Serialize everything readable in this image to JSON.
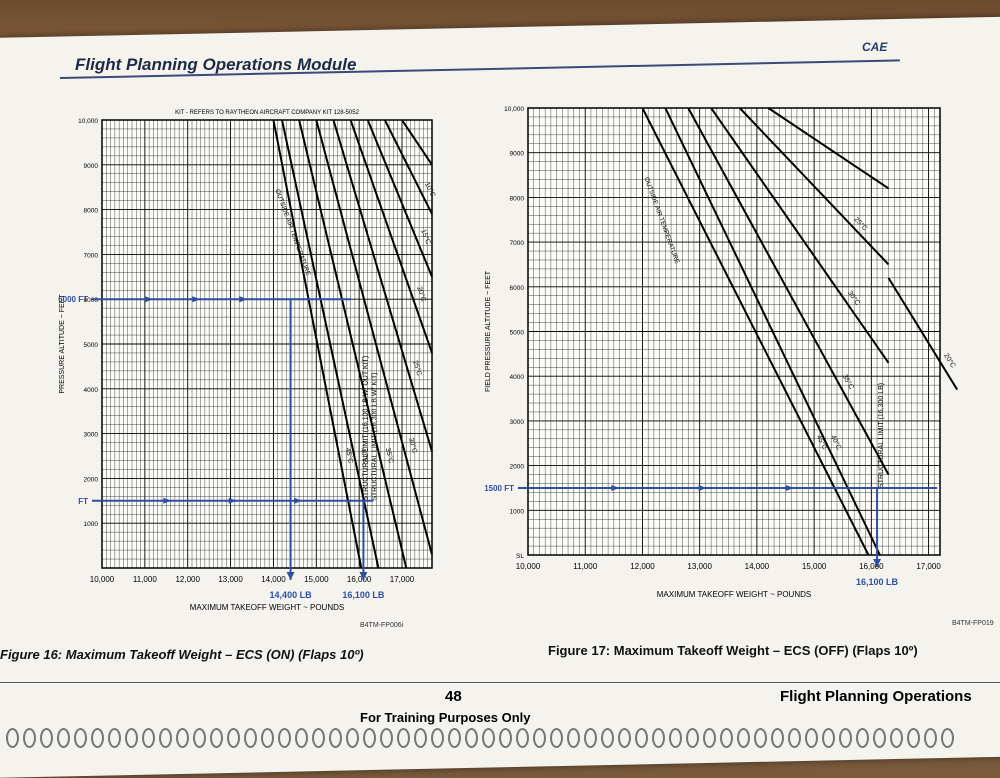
{
  "page": {
    "module_title": "Flight Planning Operations Module",
    "logo": "CAE",
    "page_number": "48",
    "training_note": "For Training Purposes Only",
    "section_title": "Flight Planning Operations"
  },
  "chart_data": [
    {
      "type": "line",
      "caption": "Figure 16:  Maximum Takeoff Weight – ECS (ON) (Flaps 10º)",
      "code": "B4TM-FP006i",
      "note": "KIT - REFERS TO RAYTHEON AIRCRAFT COMPANY KIT 128-5052",
      "xlabel": "MAXIMUM TAKEOFF WEIGHT ~ POUNDS",
      "ylabel": "PRESSURE ALTITUDE ~ FEET",
      "xlim": [
        10000,
        17700
      ],
      "ylim": [
        0,
        10000
      ],
      "x_ticks": [
        "10,000",
        "11,000",
        "12,000",
        "13,000",
        "14,000",
        "15,000",
        "16,000",
        "17,000"
      ],
      "y_ticks": [
        "",
        "1000",
        "2000",
        "3000",
        "4000",
        "5000",
        "6000",
        "7000",
        "8000",
        "9000",
        "10,000"
      ],
      "temp_label": "OUTSIDE AIR TEMPERATURE",
      "struct_labels": [
        "STRUCTURAL LIMIT (16,100 LB W/ OUT KIT)",
        "STRUCTURAL LIMIT (16,300 LB W/ KIT)"
      ],
      "temp_lines": [
        {
          "label": "45°C",
          "points": [
            [
              14000,
              10000
            ],
            [
              16050,
              0
            ]
          ]
        },
        {
          "label": "40°C",
          "points": [
            [
              14200,
              10000
            ],
            [
              16450,
              0
            ]
          ]
        },
        {
          "label": "35°C",
          "points": [
            [
              14600,
              10000
            ],
            [
              17100,
              0
            ]
          ]
        },
        {
          "label": "30°C",
          "points": [
            [
              15000,
              10000
            ],
            [
              17700,
              300
            ]
          ]
        },
        {
          "label": "25°C",
          "points": [
            [
              15400,
              10000
            ],
            [
              17700,
              2600
            ]
          ]
        },
        {
          "label": "20°C",
          "points": [
            [
              15800,
              10000
            ],
            [
              17700,
              4800
            ]
          ]
        },
        {
          "label": "15°C",
          "points": [
            [
              16200,
              10000
            ],
            [
              17700,
              6500
            ]
          ]
        },
        {
          "label": "10°C",
          "points": [
            [
              16600,
              10000
            ],
            [
              17700,
              7900
            ]
          ]
        },
        {
          "label": "",
          "points": [
            [
              17000,
              10000
            ],
            [
              17700,
              9000
            ]
          ]
        }
      ],
      "examples": [
        {
          "alt_label": "6000 FT",
          "altitude": 6000,
          "result_label": "14,400 LB",
          "result": 14400
        },
        {
          "alt_label": "FT",
          "altitude": 1500,
          "result_label": "16,100 LB",
          "result": 16100
        }
      ]
    },
    {
      "type": "line",
      "caption": "Figure 17:  Maximum Takeoff Weight – ECS (OFF) (Flaps 10º)",
      "code": "B4TM-FP019",
      "xlabel": "MAXIMUM TAKEOFF WEIGHT ~ POUNDS",
      "ylabel": "FIELD PRESSURE ALTITUDE ~ FEET",
      "xlim": [
        10000,
        17200
      ],
      "ylim": [
        0,
        10000
      ],
      "x_ticks": [
        "10,000",
        "11,000",
        "12,000",
        "13,000",
        "14,000",
        "15,000",
        "16,000",
        "17,000"
      ],
      "y_ticks": [
        "SL",
        "1000",
        "2000",
        "3000",
        "4000",
        "5000",
        "6000",
        "7000",
        "8000",
        "9000",
        "10,000"
      ],
      "temp_label": "OUTSIDE AIR TEMPERATURE",
      "struct_labels": [
        "STRUCTURAL LIMIT (16,300 LB)"
      ],
      "temp_lines": [
        {
          "label": "45°C",
          "points": [
            [
              12000,
              10000
            ],
            [
              15950,
              0
            ]
          ]
        },
        {
          "label": "40°C",
          "points": [
            [
              12400,
              10000
            ],
            [
              16150,
              0
            ]
          ]
        },
        {
          "label": "35°C",
          "points": [
            [
              12800,
              10000
            ],
            [
              16300,
              1800
            ]
          ]
        },
        {
          "label": "30°C",
          "points": [
            [
              13200,
              10000
            ],
            [
              16300,
              4300
            ]
          ]
        },
        {
          "label": "25°C",
          "points": [
            [
              13700,
              10000
            ],
            [
              16300,
              6500
            ]
          ]
        },
        {
          "label": "",
          "points": [
            [
              14200,
              10000
            ],
            [
              16300,
              8200
            ]
          ]
        },
        {
          "label": "20°C",
          "points": [
            [
              16300,
              6200
            ],
            [
              17500,
              3700
            ]
          ]
        }
      ],
      "examples": [
        {
          "alt_label": "1500 FT",
          "altitude": 1500,
          "result_label": "16,100 LB",
          "result": 16100
        }
      ]
    }
  ]
}
